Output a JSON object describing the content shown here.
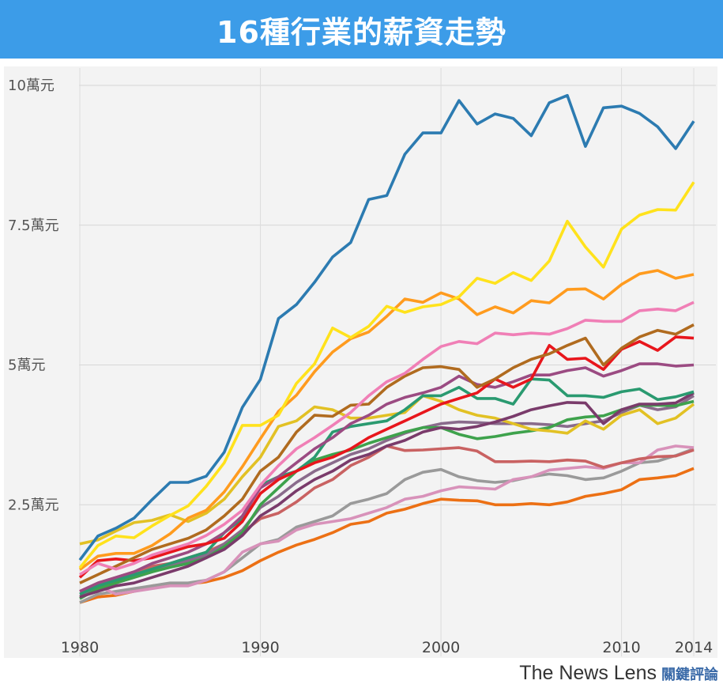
{
  "header": {
    "title": "16種行業的薪資走勢"
  },
  "footer": {
    "brand": "The News Lens",
    "brand_cn": "關鍵評論"
  },
  "chart_data": {
    "type": "line",
    "title": "16種行業的薪資走勢",
    "xlabel": "",
    "ylabel": "",
    "xlim": [
      1980,
      2014
    ],
    "ylim": [
      0,
      10
    ],
    "grid": true,
    "legend": "none",
    "y_ticks": [
      {
        "value": 10,
        "label": "10萬元"
      },
      {
        "value": 7.5,
        "label": "7.5萬元"
      },
      {
        "value": 5,
        "label": "5萬元"
      },
      {
        "value": 2.5,
        "label": "2.5萬元"
      }
    ],
    "x_ticks": [
      {
        "value": 1980,
        "label": "1980"
      },
      {
        "value": 1990,
        "label": "1990"
      },
      {
        "value": 2000,
        "label": "2000"
      },
      {
        "value": 2010,
        "label": "2010"
      },
      {
        "value": 2014,
        "label": "2014"
      }
    ],
    "x": [
      1980,
      1981,
      1982,
      1983,
      1984,
      1985,
      1986,
      1987,
      1988,
      1989,
      1990,
      1991,
      1992,
      1993,
      1994,
      1995,
      1996,
      1997,
      1998,
      1999,
      2000,
      2001,
      2002,
      2003,
      2004,
      2005,
      2006,
      2007,
      2008,
      2009,
      2010,
      2011,
      2012,
      2013,
      2014
    ],
    "series": [
      {
        "color": "#2c7bb1",
        "values": [
          1.51,
          1.94,
          2.08,
          2.26,
          2.59,
          2.9,
          2.9,
          3.01,
          3.44,
          4.24,
          4.74,
          5.83,
          6.08,
          6.48,
          6.93,
          7.19,
          7.96,
          8.03,
          8.77,
          9.15,
          9.15,
          9.73,
          9.31,
          9.49,
          9.41,
          9.1,
          9.69,
          9.82,
          8.91,
          9.6,
          9.63,
          9.5,
          9.26,
          8.87,
          9.36
        ]
      },
      {
        "color": "#ffe21c",
        "values": [
          1.37,
          1.77,
          1.94,
          1.91,
          2.12,
          2.31,
          2.48,
          2.83,
          3.25,
          3.92,
          3.92,
          4.1,
          4.67,
          5.02,
          5.66,
          5.49,
          5.69,
          6.05,
          5.94,
          6.04,
          6.08,
          6.22,
          6.55,
          6.46,
          6.65,
          6.51,
          6.86,
          7.57,
          7.11,
          6.75,
          7.43,
          7.68,
          7.78,
          7.77,
          8.27
        ]
      },
      {
        "color": "#ff9b1e",
        "values": [
          1.34,
          1.58,
          1.63,
          1.63,
          1.77,
          1.98,
          2.26,
          2.4,
          2.73,
          3.18,
          3.68,
          4.17,
          4.46,
          4.88,
          5.23,
          5.47,
          5.59,
          5.87,
          6.18,
          6.12,
          6.29,
          6.18,
          5.9,
          6.04,
          5.93,
          6.15,
          6.11,
          6.35,
          6.36,
          6.18,
          6.44,
          6.63,
          6.69,
          6.55,
          6.62
        ]
      },
      {
        "color": "#f07fb6",
        "values": [
          1.25,
          1.45,
          1.35,
          1.45,
          1.6,
          1.7,
          1.8,
          1.95,
          2.15,
          2.4,
          2.85,
          3.2,
          3.5,
          3.7,
          3.92,
          4.15,
          4.45,
          4.7,
          4.85,
          5.1,
          5.33,
          5.42,
          5.38,
          5.57,
          5.54,
          5.57,
          5.55,
          5.65,
          5.8,
          5.78,
          5.78,
          5.97,
          6.0,
          5.97,
          6.12
        ]
      },
      {
        "color": "#b06b1f",
        "values": [
          1.1,
          1.25,
          1.4,
          1.55,
          1.7,
          1.8,
          1.9,
          2.05,
          2.3,
          2.6,
          3.1,
          3.35,
          3.8,
          4.1,
          4.08,
          4.28,
          4.3,
          4.6,
          4.8,
          4.95,
          4.97,
          4.92,
          4.6,
          4.75,
          4.95,
          5.1,
          5.2,
          5.35,
          5.48,
          5.0,
          5.3,
          5.5,
          5.62,
          5.55,
          5.72
        ]
      },
      {
        "color": "#e8161c",
        "values": [
          1.2,
          1.5,
          1.53,
          1.5,
          1.55,
          1.65,
          1.75,
          1.8,
          1.9,
          2.2,
          2.7,
          2.95,
          3.1,
          3.25,
          3.35,
          3.5,
          3.7,
          3.85,
          4.0,
          4.15,
          4.3,
          4.4,
          4.5,
          4.75,
          4.6,
          4.75,
          5.35,
          5.1,
          5.12,
          4.92,
          5.28,
          5.42,
          5.26,
          5.5,
          5.48
        ]
      },
      {
        "color": "#9b4b82",
        "values": [
          0.95,
          1.1,
          1.2,
          1.3,
          1.45,
          1.55,
          1.65,
          1.8,
          2.0,
          2.3,
          2.8,
          3.0,
          3.25,
          3.5,
          3.7,
          3.95,
          4.1,
          4.3,
          4.42,
          4.5,
          4.6,
          4.8,
          4.65,
          4.6,
          4.7,
          4.82,
          4.82,
          4.9,
          4.95,
          4.8,
          4.9,
          5.02,
          5.02,
          4.98,
          5.0
        ]
      },
      {
        "color": "#2a9a70",
        "values": [
          0.9,
          1.05,
          1.15,
          1.25,
          1.35,
          1.45,
          1.55,
          1.65,
          2.0,
          2.25,
          2.85,
          3.0,
          3.1,
          3.35,
          3.8,
          3.9,
          3.95,
          4.0,
          4.2,
          4.45,
          4.45,
          4.6,
          4.4,
          4.4,
          4.3,
          4.75,
          4.73,
          4.45,
          4.45,
          4.42,
          4.52,
          4.57,
          4.38,
          4.43,
          4.52
        ]
      },
      {
        "color": "#7a3b6b",
        "values": [
          0.85,
          0.95,
          1.05,
          1.1,
          1.2,
          1.3,
          1.4,
          1.55,
          1.7,
          1.95,
          2.3,
          2.5,
          2.75,
          2.95,
          3.1,
          3.3,
          3.4,
          3.55,
          3.65,
          3.8,
          3.88,
          3.85,
          3.9,
          3.98,
          4.08,
          4.2,
          4.27,
          4.33,
          4.32,
          3.95,
          4.2,
          4.3,
          4.3,
          4.32,
          4.5
        ]
      },
      {
        "color": "#e2c124",
        "values": [
          1.8,
          1.87,
          2.03,
          2.18,
          2.22,
          2.32,
          2.2,
          2.35,
          2.6,
          3.0,
          3.35,
          3.9,
          4.0,
          4.25,
          4.2,
          4.05,
          4.05,
          4.1,
          4.15,
          4.45,
          4.35,
          4.2,
          4.1,
          4.05,
          3.95,
          3.85,
          3.82,
          3.78,
          4.0,
          3.85,
          4.1,
          4.2,
          3.95,
          4.05,
          4.3
        ]
      },
      {
        "color": "#3ea24c",
        "values": [
          0.82,
          1.0,
          1.1,
          1.2,
          1.3,
          1.38,
          1.45,
          1.55,
          1.75,
          2.0,
          2.5,
          2.8,
          3.1,
          3.3,
          3.4,
          3.48,
          3.6,
          3.7,
          3.8,
          3.88,
          3.88,
          3.76,
          3.68,
          3.72,
          3.78,
          3.82,
          3.88,
          4.02,
          4.07,
          4.09,
          4.2,
          4.28,
          4.28,
          4.27,
          4.35
        ]
      },
      {
        "color": "#8a6b8c",
        "values": [
          0.9,
          1.0,
          1.1,
          1.2,
          1.3,
          1.4,
          1.5,
          1.6,
          1.8,
          2.05,
          2.45,
          2.65,
          2.9,
          3.1,
          3.25,
          3.4,
          3.5,
          3.65,
          3.78,
          3.88,
          3.95,
          3.98,
          3.97,
          3.95,
          3.95,
          3.95,
          3.93,
          3.9,
          3.95,
          4.0,
          4.15,
          4.28,
          4.2,
          4.25,
          4.45
        ]
      },
      {
        "color": "#c96262",
        "values": [
          0.95,
          1.1,
          1.2,
          1.3,
          1.4,
          1.45,
          1.55,
          1.65,
          1.8,
          2.0,
          2.25,
          2.35,
          2.55,
          2.8,
          2.95,
          3.2,
          3.35,
          3.55,
          3.47,
          3.48,
          3.5,
          3.52,
          3.46,
          3.27,
          3.27,
          3.28,
          3.27,
          3.3,
          3.28,
          3.17,
          3.25,
          3.32,
          3.36,
          3.37,
          3.48
        ]
      },
      {
        "color": "#d892ba",
        "values": [
          0.85,
          1.05,
          0.9,
          0.95,
          1.0,
          1.05,
          1.05,
          1.15,
          1.3,
          1.65,
          1.8,
          1.85,
          2.05,
          2.15,
          2.2,
          2.25,
          2.35,
          2.45,
          2.6,
          2.65,
          2.75,
          2.82,
          2.8,
          2.78,
          2.95,
          3.0,
          3.12,
          3.15,
          3.18,
          3.15,
          3.25,
          3.25,
          3.48,
          3.55,
          3.52
        ]
      },
      {
        "color": "#9a9a9a",
        "values": [
          0.75,
          0.9,
          0.95,
          1.0,
          1.05,
          1.1,
          1.1,
          1.15,
          1.3,
          1.55,
          1.8,
          1.88,
          2.1,
          2.2,
          2.3,
          2.52,
          2.6,
          2.7,
          2.95,
          3.08,
          3.13,
          3.0,
          2.93,
          2.9,
          2.93,
          3.0,
          3.05,
          3.02,
          2.95,
          2.98,
          3.1,
          3.25,
          3.28,
          3.38,
          3.5
        ]
      },
      {
        "color": "#ec7014",
        "values": [
          0.75,
          0.85,
          0.88,
          0.95,
          1.05,
          1.08,
          1.08,
          1.12,
          1.2,
          1.32,
          1.5,
          1.65,
          1.78,
          1.88,
          2.0,
          2.15,
          2.2,
          2.35,
          2.42,
          2.52,
          2.6,
          2.58,
          2.57,
          2.5,
          2.5,
          2.52,
          2.5,
          2.55,
          2.65,
          2.7,
          2.77,
          2.95,
          2.98,
          3.02,
          3.15
        ]
      }
    ]
  }
}
